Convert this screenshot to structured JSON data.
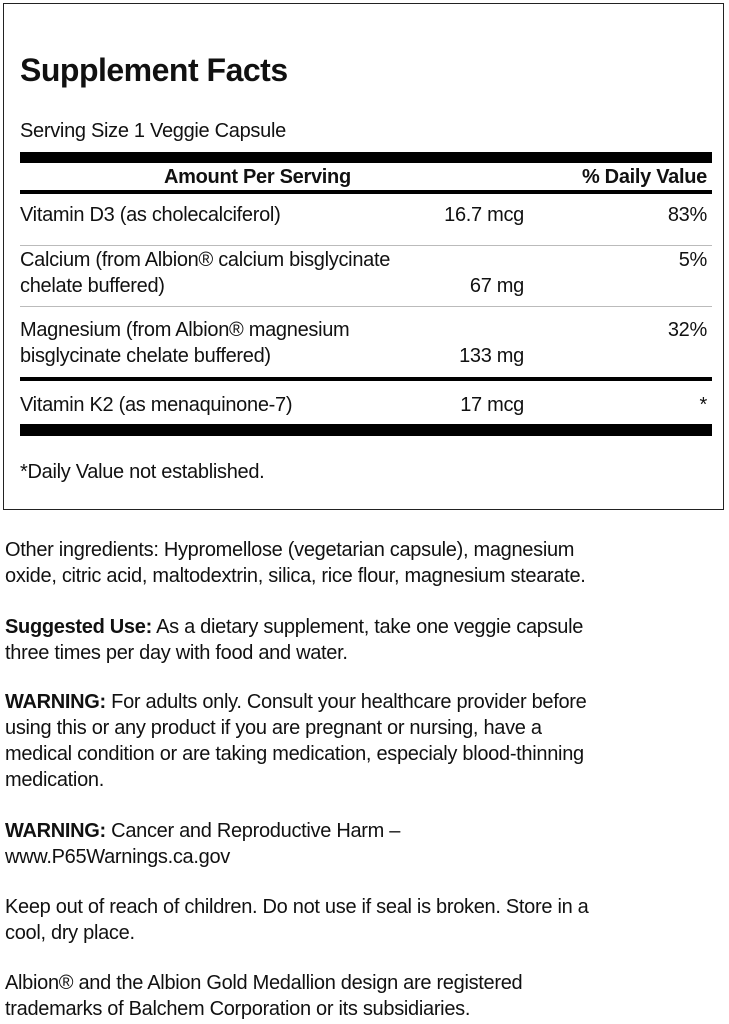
{
  "facts": {
    "title": "Supplement Facts",
    "serving_size": "Serving Size 1 Veggie Capsule",
    "header_amount": "Amount Per Serving",
    "header_dv": "% Daily Value",
    "rows": [
      {
        "name_lines": [
          "Vitamin D3 (as cholecalciferol)"
        ],
        "amount": "16.7 mcg",
        "dv": "83%"
      },
      {
        "name_lines": [
          "Calcium (from Albion® calcium bisglycinate",
          "chelate buffered)"
        ],
        "amount": "67 mg",
        "dv": "5%"
      },
      {
        "name_lines": [
          "Magnesium (from Albion® magnesium",
          "bisglycinate chelate buffered)"
        ],
        "amount": "133 mg",
        "dv": "32%"
      },
      {
        "name_lines": [
          "Vitamin K2 (as menaquinone-7)"
        ],
        "amount": "17 mcg",
        "dv": "*"
      }
    ],
    "footnote": "*Daily Value not established."
  },
  "text": {
    "other": [
      "Other ingredients: Hypromellose (vegetarian capsule), magnesium",
      "oxide, citric acid, maltodextrin, silica, rice flour, magnesium stearate."
    ],
    "use_label": "Suggested Use:",
    "use": [
      " As a dietary supplement, take one veggie capsule",
      "three times per day with food and water."
    ],
    "warn1_label": "WARNING:",
    "warn1": [
      " For adults only. Consult your healthcare provider before",
      "using this or any product if you are pregnant or nursing, have a",
      "medical condition or are taking medication, especialy blood-thinning",
      "medication."
    ],
    "warn2_label": "WARNING:",
    "warn2": [
      " Cancer and Reproductive Harm –",
      "www.P65Warnings.ca.gov"
    ],
    "keep": [
      "Keep out of reach of children. Do not use if seal is broken. Store in a",
      "cool, dry place."
    ],
    "albion": [
      "Albion® and the Albion Gold Medallion design are registered",
      "trademarks of Balchem Corporation or its subsidiaries."
    ]
  }
}
